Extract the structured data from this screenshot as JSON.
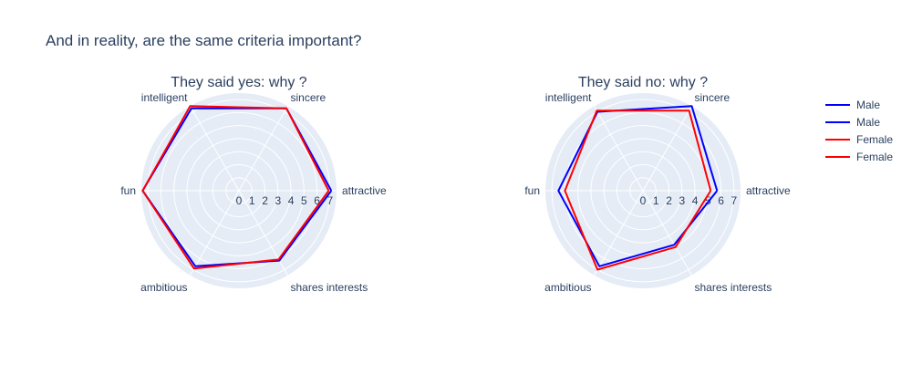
{
  "title": "And in reality, are the same criteria important?",
  "colors": {
    "background_polar": "#e5ecf6",
    "text": "#2a3f5f",
    "grid": "#ffffff"
  },
  "chart_data": [
    {
      "type": "radar",
      "title": "They said yes: why ?",
      "axes": [
        "attractive",
        "sincere",
        "intelligent",
        "fun",
        "ambitious",
        "shares interests"
      ],
      "radial_range": [
        0,
        7.5
      ],
      "radial_ticks": [
        "0",
        "1",
        "2",
        "3",
        "4",
        "5",
        "6",
        "7"
      ],
      "series": [
        {
          "name": "Male",
          "color": "#0000ff",
          "values": [
            7.1,
            7.3,
            7.3,
            7.4,
            6.7,
            6.2
          ]
        },
        {
          "name": "Female",
          "color": "#ff0000",
          "values": [
            6.9,
            7.3,
            7.5,
            7.4,
            6.9,
            6.1
          ]
        }
      ]
    },
    {
      "type": "radar",
      "title": "They said no: why ?",
      "axes": [
        "attractive",
        "sincere",
        "intelligent",
        "fun",
        "ambitious",
        "shares interests"
      ],
      "radial_range": [
        0,
        7.5
      ],
      "radial_ticks": [
        "0",
        "1",
        "2",
        "3",
        "4",
        "5",
        "6",
        "7"
      ],
      "series": [
        {
          "name": "Male",
          "color": "#0000ff",
          "values": [
            5.7,
            7.5,
            7.0,
            6.5,
            6.7,
            4.8
          ]
        },
        {
          "name": "Female",
          "color": "#ff0000",
          "values": [
            5.2,
            7.1,
            7.1,
            6.0,
            7.0,
            5.0
          ]
        }
      ]
    }
  ],
  "legend": {
    "position": "right",
    "entries": [
      {
        "name": "Male",
        "color": "#0000ff"
      },
      {
        "name": "Male",
        "color": "#0000ff"
      },
      {
        "name": "Female",
        "color": "#ff0000"
      },
      {
        "name": "Female",
        "color": "#ff0000"
      }
    ]
  }
}
